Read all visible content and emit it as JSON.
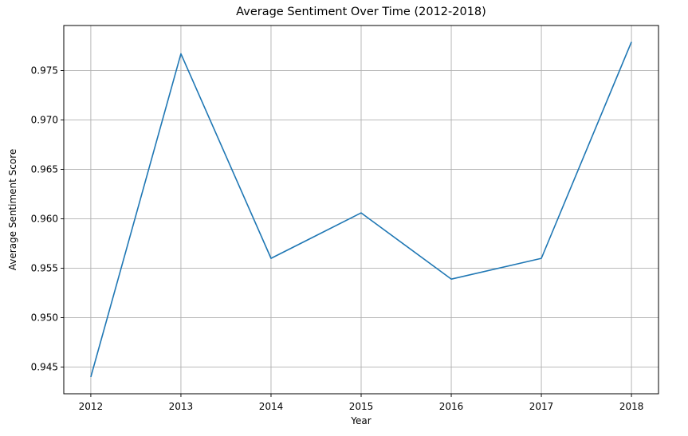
{
  "chart_data": {
    "type": "line",
    "title": "Average Sentiment Over Time (2012-2018)",
    "xlabel": "Year",
    "ylabel": "Average Sentiment Score",
    "x": [
      2012,
      2013,
      2014,
      2015,
      2016,
      2017,
      2018
    ],
    "series": [
      {
        "values": [
          0.944,
          0.9767,
          0.956,
          0.9606,
          0.9539,
          0.956,
          0.9779
        ]
      }
    ],
    "xticks": [
      "2012",
      "2013",
      "2014",
      "2015",
      "2016",
      "2017",
      "2018"
    ],
    "yticks": [
      "0.945",
      "0.950",
      "0.955",
      "0.960",
      "0.965",
      "0.970",
      "0.975"
    ],
    "ytick_values": [
      0.945,
      0.95,
      0.955,
      0.96,
      0.965,
      0.97,
      0.975
    ],
    "xlim": [
      2011.7,
      2018.3
    ],
    "ylim": [
      0.9423,
      0.97956
    ],
    "grid": true,
    "line_color": "#1f77b4",
    "grid_color": "#b0b0b0"
  }
}
